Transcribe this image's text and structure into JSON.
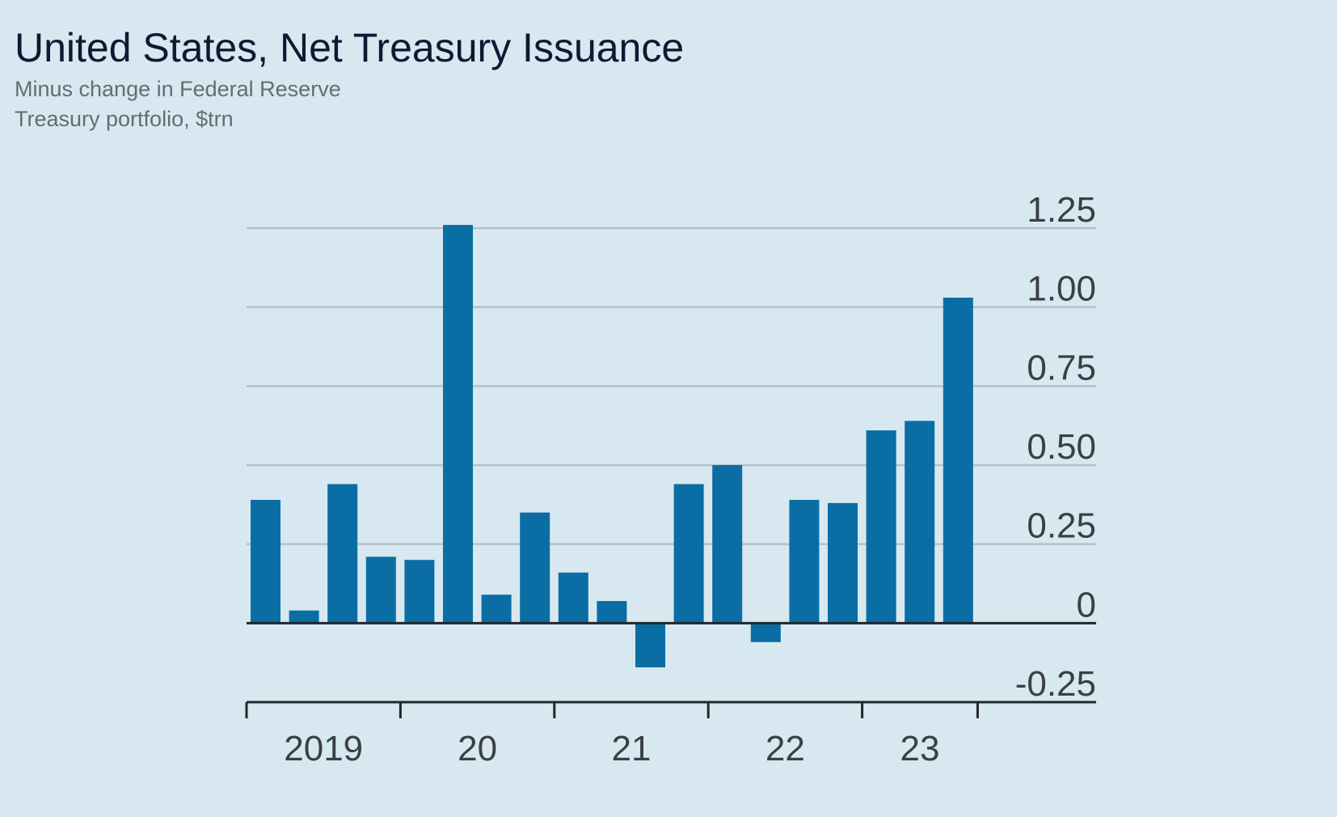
{
  "chart_data": {
    "type": "bar",
    "title": "United States, Net Treasury Issuance",
    "subtitle_lines": [
      "Minus change in Federal Reserve",
      "Treasury portfolio, $trn"
    ],
    "xlabel": "",
    "ylabel": "$trn",
    "ylim": [
      -0.25,
      1.25
    ],
    "yticks": [
      1.25,
      1.0,
      0.75,
      0.5,
      0.25,
      0,
      -0.25
    ],
    "ytick_labels": [
      "1.25",
      "1.00",
      "0.75",
      "0.50",
      "0.25",
      "0",
      "-0.25"
    ],
    "grid": true,
    "y_axis_side": "right",
    "x_ticks": [
      "2019",
      "20",
      "21",
      "22",
      "23"
    ],
    "categories": [
      "2019 Q1",
      "2019 Q2",
      "2019 Q3",
      "2019 Q4",
      "2020 Q1",
      "2020 Q2",
      "2020 Q3",
      "2020 Q4",
      "2021 Q1",
      "2021 Q2",
      "2021 Q3",
      "2021 Q4",
      "2022 Q1",
      "2022 Q2",
      "2022 Q3",
      "2022 Q4",
      "2023 Q1",
      "2023 Q2",
      "2023 Q3"
    ],
    "values": [
      0.39,
      0.04,
      0.44,
      0.21,
      0.2,
      1.26,
      0.09,
      0.35,
      0.16,
      0.07,
      -0.14,
      0.44,
      0.5,
      -0.06,
      0.39,
      0.38,
      0.61,
      0.64,
      1.03
    ],
    "bar_color": "#0a6ea5"
  }
}
